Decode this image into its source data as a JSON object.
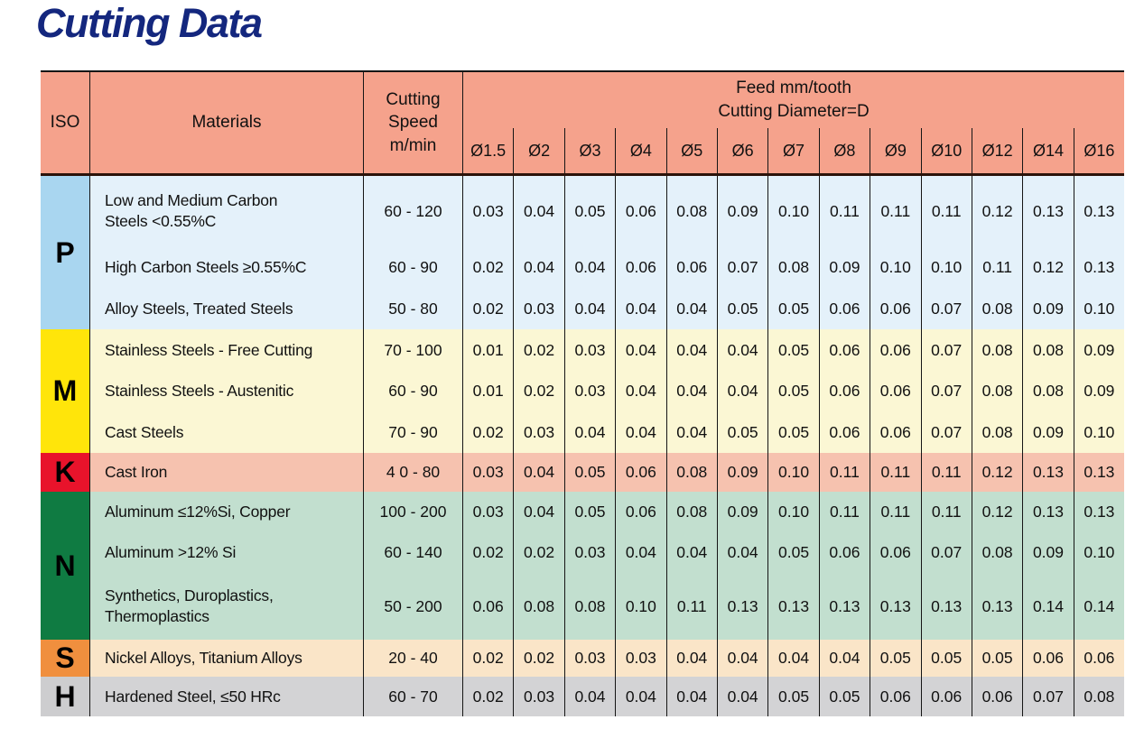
{
  "page": {
    "title": "Cutting Data"
  },
  "table": {
    "header": {
      "iso": "ISO",
      "materials": "Materials",
      "cutting_speed": "Cutting\nSpeed\nm/min",
      "feed_title": "Feed mm/tooth\nCutting Diameter=D",
      "diameters": [
        "Ø1.5",
        "Ø2",
        "Ø3",
        "Ø4",
        "Ø5",
        "Ø6",
        "Ø7",
        "Ø8",
        "Ø9",
        "Ø10",
        "Ø12",
        "Ø14",
        "Ø16"
      ],
      "header_color": "#F5A28C"
    },
    "groups": [
      {
        "iso": "P",
        "iso_color": "#A9D6F0",
        "row_color": "#E4F1FA",
        "rows": [
          {
            "material": "Low and Medium Carbon\nSteels <0.55%C",
            "speed": "60 - 120",
            "feeds": [
              "0.03",
              "0.04",
              "0.05",
              "0.06",
              "0.08",
              "0.09",
              "0.10",
              "0.11",
              "0.11",
              "0.11",
              "0.12",
              "0.13",
              "0.13"
            ]
          },
          {
            "material": "High Carbon Steels ≥0.55%C",
            "speed": "60 - 90",
            "feeds": [
              "0.02",
              "0.04",
              "0.04",
              "0.06",
              "0.06",
              "0.07",
              "0.08",
              "0.09",
              "0.10",
              "0.10",
              "0.11",
              "0.12",
              "0.13"
            ]
          },
          {
            "material": "Alloy Steels, Treated Steels",
            "speed": "50 - 80",
            "feeds": [
              "0.02",
              "0.03",
              "0.04",
              "0.04",
              "0.04",
              "0.05",
              "0.05",
              "0.06",
              "0.06",
              "0.07",
              "0.08",
              "0.09",
              "0.10"
            ]
          }
        ]
      },
      {
        "iso": "M",
        "iso_color": "#FFE50A",
        "row_color": "#FBF7D4",
        "rows": [
          {
            "material": "Stainless Steels - Free Cutting",
            "speed": "70 - 100",
            "feeds": [
              "0.01",
              "0.02",
              "0.03",
              "0.04",
              "0.04",
              "0.04",
              "0.05",
              "0.06",
              "0.06",
              "0.07",
              "0.08",
              "0.08",
              "0.09"
            ]
          },
          {
            "material": "Stainless Steels - Austenitic",
            "speed": "60 - 90",
            "feeds": [
              "0.01",
              "0.02",
              "0.03",
              "0.04",
              "0.04",
              "0.04",
              "0.05",
              "0.06",
              "0.06",
              "0.07",
              "0.08",
              "0.08",
              "0.09"
            ]
          },
          {
            "material": "Cast Steels",
            "speed": "70 - 90",
            "feeds": [
              "0.02",
              "0.03",
              "0.04",
              "0.04",
              "0.04",
              "0.05",
              "0.05",
              "0.06",
              "0.06",
              "0.07",
              "0.08",
              "0.09",
              "0.10"
            ]
          }
        ]
      },
      {
        "iso": "K",
        "iso_color": "#E8132B",
        "row_color": "#F6C2AF",
        "rows": [
          {
            "material": "Cast Iron",
            "speed": "4 0 - 80",
            "feeds": [
              "0.03",
              "0.04",
              "0.05",
              "0.06",
              "0.08",
              "0.09",
              "0.10",
              "0.11",
              "0.11",
              "0.11",
              "0.12",
              "0.13",
              "0.13"
            ]
          }
        ]
      },
      {
        "iso": "N",
        "iso_color": "#0F7B42",
        "row_color": "#C2DFCF",
        "rows": [
          {
            "material": "Aluminum ≤12%Si, Copper",
            "speed": "100 - 200",
            "feeds": [
              "0.03",
              "0.04",
              "0.05",
              "0.06",
              "0.08",
              "0.09",
              "0.10",
              "0.11",
              "0.11",
              "0.11",
              "0.12",
              "0.13",
              "0.13"
            ]
          },
          {
            "material": "Aluminum >12% Si",
            "speed": "60 - 140",
            "feeds": [
              "0.02",
              "0.02",
              "0.03",
              "0.04",
              "0.04",
              "0.04",
              "0.05",
              "0.06",
              "0.06",
              "0.07",
              "0.08",
              "0.09",
              "0.10"
            ]
          },
          {
            "material": "Synthetics, Duroplastics,\nThermoplastics",
            "speed": "50 - 200",
            "feeds": [
              "0.06",
              "0.08",
              "0.08",
              "0.10",
              "0.11",
              "0.13",
              "0.13",
              "0.13",
              "0.13",
              "0.13",
              "0.13",
              "0.14",
              "0.14"
            ]
          }
        ]
      },
      {
        "iso": "S",
        "iso_color": "#F08F3E",
        "row_color": "#FAE5C8",
        "rows": [
          {
            "material": "Nickel Alloys, Titanium Alloys",
            "speed": "20 - 40",
            "feeds": [
              "0.02",
              "0.02",
              "0.03",
              "0.03",
              "0.04",
              "0.04",
              "0.04",
              "0.04",
              "0.05",
              "0.05",
              "0.05",
              "0.06",
              "0.06"
            ]
          }
        ]
      },
      {
        "iso": "H",
        "iso_color": "#CDCDCF",
        "row_color": "#D3D3D5",
        "rows": [
          {
            "material": "Hardened Steel, ≤50 HRc",
            "speed": "60 - 70",
            "feeds": [
              "0.02",
              "0.03",
              "0.04",
              "0.04",
              "0.04",
              "0.04",
              "0.05",
              "0.05",
              "0.06",
              "0.06",
              "0.06",
              "0.07",
              "0.08"
            ]
          }
        ]
      }
    ]
  }
}
